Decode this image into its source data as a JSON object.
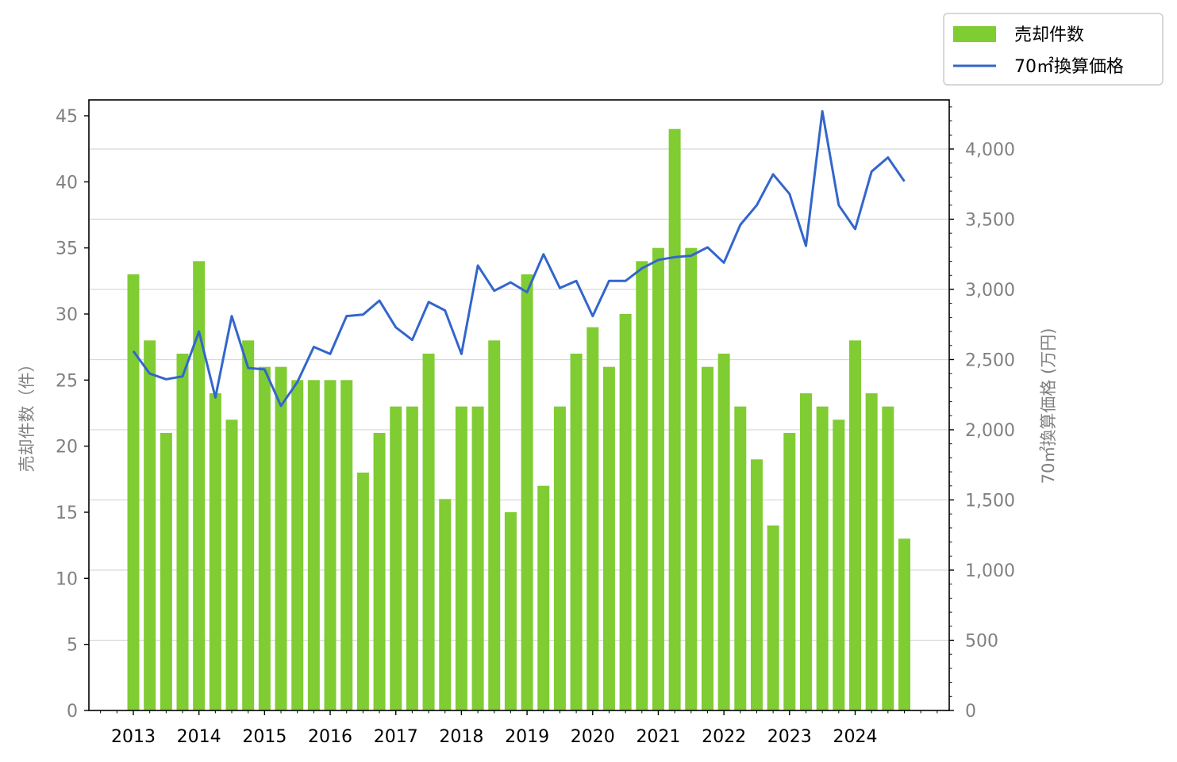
{
  "chart_data": {
    "type": "bar+line",
    "title": "",
    "xlabel": "",
    "ylabel_left": "売却件数（件）",
    "ylabel_right": "70㎡換算価格 (万円)",
    "x_tick_labels": [
      "2013",
      "2014",
      "2015",
      "2016",
      "2017",
      "2018",
      "2019",
      "2020",
      "2021",
      "2022",
      "2023",
      "2024"
    ],
    "ylim_left": [
      0,
      46.2
    ],
    "ylim_right": [
      0,
      4350
    ],
    "yticks_left": [
      "0",
      "5",
      "10",
      "15",
      "20",
      "25",
      "30",
      "35",
      "40",
      "45"
    ],
    "yticks_right": [
      "0",
      "500",
      "1,000",
      "1,500",
      "2,000",
      "2,500",
      "3,000",
      "3,500",
      "4,000"
    ],
    "grid": "horizontal (right axis)",
    "legend_position": "top-right",
    "periods": [
      "2013 Q1",
      "2013 Q2",
      "2013 Q3",
      "2013 Q4",
      "2014 Q1",
      "2014 Q2",
      "2014 Q3",
      "2014 Q4",
      "2015 Q1",
      "2015 Q2",
      "2015 Q3",
      "2015 Q4",
      "2016 Q1",
      "2016 Q2",
      "2016 Q3",
      "2016 Q4",
      "2017 Q1",
      "2017 Q2",
      "2017 Q3",
      "2017 Q4",
      "2018 Q1",
      "2018 Q2",
      "2018 Q3",
      "2018 Q4",
      "2019 Q1",
      "2019 Q2",
      "2019 Q3",
      "2019 Q4",
      "2020 Q1",
      "2020 Q2",
      "2020 Q3",
      "2020 Q4",
      "2021 Q1",
      "2021 Q2",
      "2021 Q3",
      "2021 Q4",
      "2022 Q1",
      "2022 Q2",
      "2022 Q3",
      "2022 Q4",
      "2023 Q1",
      "2023 Q2",
      "2023 Q3",
      "2023 Q4",
      "2024 Q1",
      "2024 Q2",
      "2024 Q3",
      "2024 Q4"
    ],
    "series": [
      {
        "name": "売却件数",
        "type": "bar",
        "axis": "left",
        "color": "#80cc33",
        "values": [
          33,
          28,
          21,
          27,
          34,
          24,
          22,
          28,
          26,
          26,
          25,
          25,
          25,
          25,
          18,
          21,
          23,
          23,
          27,
          16,
          23,
          23,
          28,
          15,
          33,
          17,
          23,
          27,
          29,
          26,
          30,
          34,
          35,
          44,
          35,
          26,
          27,
          23,
          19,
          14,
          21,
          24,
          23,
          22,
          28,
          24,
          23,
          13
        ]
      },
      {
        "name": "70㎡換算価格",
        "type": "line",
        "axis": "right",
        "color": "#3366cc",
        "values": [
          2560,
          2400,
          2360,
          2380,
          2700,
          2230,
          2810,
          2440,
          2430,
          2170,
          2340,
          2590,
          2540,
          2810,
          2820,
          2920,
          2730,
          2640,
          2910,
          2850,
          2540,
          3170,
          2990,
          3050,
          2980,
          3250,
          3010,
          3060,
          2810,
          3060,
          3060,
          3150,
          3210,
          3230,
          3240,
          3300,
          3190,
          3460,
          3600,
          3820,
          3680,
          3310,
          4270,
          3600,
          3430,
          3840,
          3940,
          3770
        ]
      }
    ]
  }
}
